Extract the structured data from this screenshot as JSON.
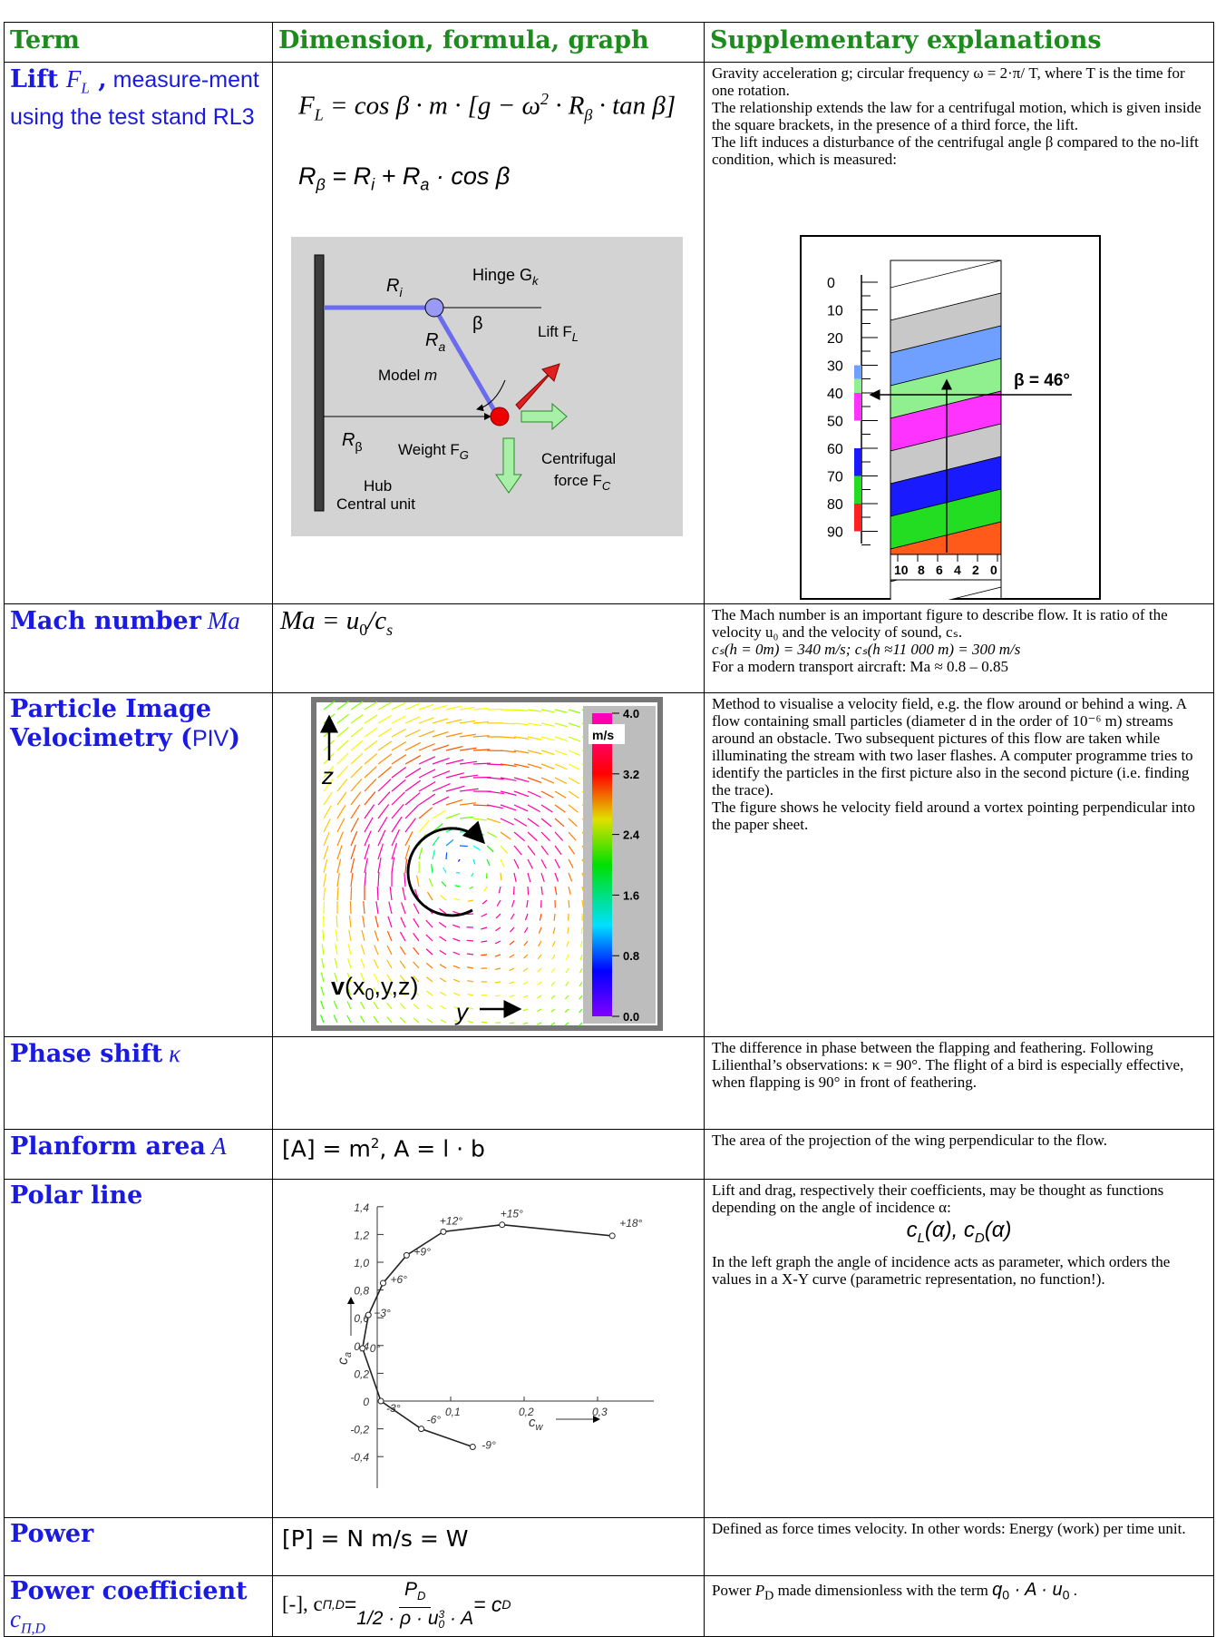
{
  "header": {
    "term": "Term",
    "formula": "Dimension, formula, graph",
    "explanation": "Supplementary explanations"
  },
  "rows": {
    "lift": {
      "term": [
        "Lift",
        "F",
        "L",
        " ,",
        " measure-ment using the test stand RL3"
      ],
      "formula1": [
        "F",
        "L",
        " = cos β · m · [g − ω",
        "2",
        " · R",
        "β",
        " · tan β]"
      ],
      "formula2": [
        "R",
        "β",
        " = R",
        "i",
        " + R",
        "a",
        " · cos β"
      ],
      "diagram": {
        "ri": [
          "R",
          "i"
        ],
        "hinge": [
          "Hinge G",
          "k"
        ],
        "beta": "β",
        "lift": [
          "Lift F",
          "L"
        ],
        "ra": [
          "R",
          "a"
        ],
        "model": [
          "Model ",
          "m"
        ],
        "rbeta": [
          "R",
          "β"
        ],
        "weight": [
          "Weight F",
          "G"
        ],
        "centrifugal1": "Centrifugal",
        "centrifugal2": [
          "force  F",
          "C"
        ],
        "hub1": "Hub",
        "hub2": "Central unit"
      },
      "explanation": [
        "Gravity acceleration g; circular frequency ω = 2·π/ T, where T is the time for one rotation.",
        "The relationship extends the law for a centrifugal motion, which is given inside the square brackets, in the presence of a third force, the lift.",
        "The lift induces a disturbance of the centrifugal angle β compared to the no-lift condition, which is measured:"
      ],
      "scale": {
        "ticks": [
          "0",
          "10",
          "20",
          "30",
          "40",
          "50",
          "60",
          "70",
          "80",
          "90"
        ],
        "angle": "β = 46°",
        "bottom": [
          "10",
          "8",
          "6",
          "4",
          "2",
          "0"
        ]
      }
    },
    "mach": {
      "term": [
        "Mach number",
        " Ma"
      ],
      "formula": [
        "Ma = u",
        "0",
        "/c",
        "s"
      ],
      "explanation": [
        "The Mach number is an important figure to describe flow. It is ratio of the velocity u₀ and the velocity of sound, cₛ.",
        "cₛ(h = 0m) = 340 m/s; cₛ(h ≈11 000 m) = 300 m/s",
        "For a modern transport aircraft: Ma ≈ 0.8 – 0.85"
      ]
    },
    "piv": {
      "term": [
        "Particle Image Velocimetry",
        " (",
        "PIV",
        ")"
      ],
      "figure": {
        "z": "z",
        "y": "y",
        "vector": [
          "v",
          "(x",
          "0",
          ",y,z)"
        ],
        "unit": "m/s",
        "colorbar": [
          "4.0",
          "3.2",
          "2.4",
          "1.6",
          "0.8",
          "0.0"
        ]
      },
      "explanation": [
        "Method to visualise a velocity field, e.g. the flow around or behind a wing. A flow containing small particles (diameter d in the order of 10⁻⁶ m) streams around an obstacle. Two subsequent pictures of this flow are taken while illuminating the stream with two laser flashes. A computer programme tries to identify the particles in the first picture also in the second picture (i.e. finding the trace).",
        "The figure shows he velocity field around a vortex pointing perpendicular into the paper sheet."
      ]
    },
    "phase": {
      "term": [
        "Phase shift",
        " κ"
      ],
      "explanation": [
        "The difference in phase between the flapping and feathering. Following Lilienthal’s observations: κ = 90°. The flight of a bird is especially effective, when flapping is 90° in front of feathering."
      ]
    },
    "planform": {
      "term": [
        "Planform area",
        " A"
      ],
      "formula": [
        "[A] = m",
        "2",
        ", A = l · b"
      ],
      "explanation": [
        "The area of the projection of the wing perpendicular to the flow."
      ]
    },
    "polar": {
      "term": [
        "Polar line"
      ],
      "figure": {
        "yticks": [
          "1,4",
          "1,2",
          "1,0",
          "0,8",
          "0,6",
          "0,4",
          "0,2",
          "0",
          "-0,2",
          "-0,4"
        ],
        "xticks": [
          "0,1",
          "0,2",
          "0,3"
        ],
        "ylabel": [
          "c",
          "a"
        ],
        "xlabel": [
          "c",
          "w"
        ],
        "angles": [
          "-9°",
          "-6°",
          "-3°",
          "0°",
          "+3°",
          "+6°",
          "+9°",
          "+12°",
          "+15°",
          "+18°"
        ]
      },
      "explanation1": "Lift and drag, respectively their coefficients, may be thought as functions depending on the angle of incidence α:",
      "formula": [
        "c",
        "L",
        "(α), c",
        "D",
        "(α)"
      ],
      "explanation2": "In the left graph the angle of incidence acts as parameter, which orders the values in a X-Y curve (parametric representation, no function!)."
    },
    "power": {
      "term": [
        "Power"
      ],
      "formula": "[P] = N m/s = W",
      "explanation": [
        "Defined as force times velocity. In other words: Energy (work) per time unit."
      ]
    },
    "power_coefficient": {
      "term": [
        "Power coefficient",
        "c",
        "Π,D"
      ],
      "formula": [
        "[-],  c",
        "Π,D",
        " = ",
        "P",
        "D",
        "1/2 · ρ · u",
        "0",
        "3",
        " · A",
        " = c",
        "D"
      ],
      "explanation": [
        "Power ",
        "P",
        "D",
        " made dimensionless with the term ",
        "q",
        "0",
        " · A · u",
        "0",
        " ."
      ]
    }
  }
}
